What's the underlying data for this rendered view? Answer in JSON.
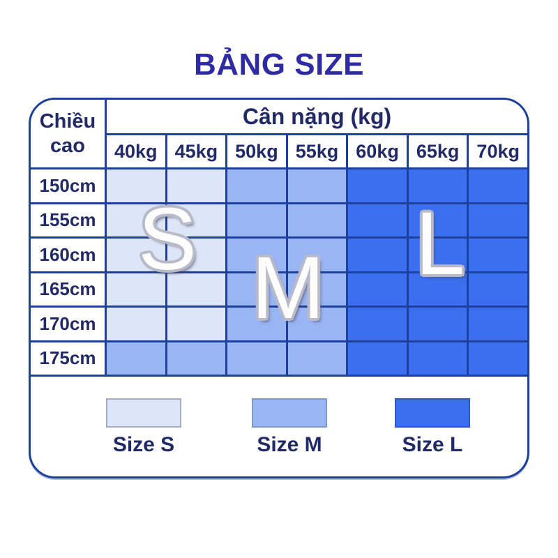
{
  "title": "BẢNG SIZE",
  "table": {
    "height_header": "Chiều cao",
    "weight_header": "Cân nặng (kg)"
  },
  "chart_data": {
    "type": "heatmap",
    "title": "BẢNG SIZE",
    "x_label": "Cân nặng (kg)",
    "y_label": "Chiều cao",
    "x": [
      "40kg",
      "45kg",
      "50kg",
      "55kg",
      "60kg",
      "65kg",
      "70kg"
    ],
    "y": [
      "150cm",
      "155cm",
      "160cm",
      "165cm",
      "170cm",
      "175cm"
    ],
    "values": [
      [
        "S",
        "S",
        "M",
        "M",
        "L",
        "L",
        "L"
      ],
      [
        "S",
        "S",
        "M",
        "M",
        "L",
        "L",
        "L"
      ],
      [
        "S",
        "S",
        "M",
        "M",
        "L",
        "L",
        "L"
      ],
      [
        "S",
        "S",
        "M",
        "M",
        "L",
        "L",
        "L"
      ],
      [
        "S",
        "S",
        "M",
        "M",
        "L",
        "L",
        "L"
      ],
      [
        "M",
        "M",
        "M",
        "M",
        "L",
        "L",
        "L"
      ]
    ],
    "zone_letters": [
      "S",
      "M",
      "L"
    ],
    "legend": [
      "Size S",
      "Size M",
      "Size L"
    ],
    "grid": true,
    "legend_position": "bottom"
  },
  "zones": [
    "S",
    "M",
    "L"
  ],
  "legend": [
    {
      "label": "Size S",
      "size": "S"
    },
    {
      "label": "Size M",
      "size": "M"
    },
    {
      "label": "Size L",
      "size": "L"
    }
  ],
  "colors": {
    "size_s": "#dde6f9",
    "size_m": "#9ab5f3",
    "size_l": "#3b6ff0",
    "grid": "#1d419a",
    "text": "#212a66",
    "title": "#2f2ba5"
  }
}
